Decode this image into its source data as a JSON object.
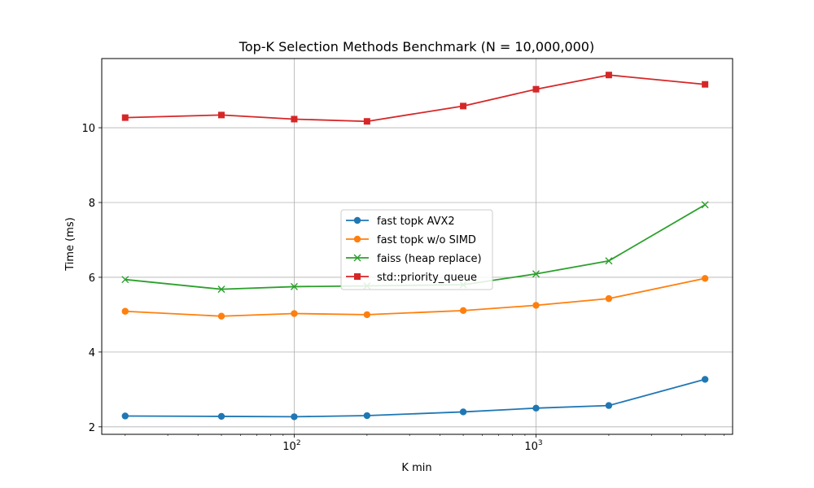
{
  "chart_data": {
    "type": "line",
    "title": "Top-K Selection Methods Benchmark (N = 10,000,000)",
    "xlabel": "K min",
    "ylabel": "Time (ms)",
    "xscale": "log",
    "xlim": [
      16,
      6500
    ],
    "ylim": [
      1.8,
      11.85
    ],
    "grid": true,
    "legend_position": "center",
    "x": [
      20,
      50,
      100,
      200,
      500,
      1000,
      2000,
      5000
    ],
    "x_ticks": [
      {
        "value": 100,
        "base": "10",
        "exp": "2"
      },
      {
        "value": 1000,
        "base": "10",
        "exp": "3"
      }
    ],
    "y_ticks": [
      2,
      4,
      6,
      8,
      10
    ],
    "series": [
      {
        "name": "fast topk AVX2",
        "color": "#1f77b4",
        "marker": "circle",
        "values": [
          2.29,
          2.28,
          2.27,
          2.3,
          2.4,
          2.5,
          2.57,
          3.27
        ]
      },
      {
        "name": "fast topk w/o SIMD",
        "color": "#ff7f0e",
        "marker": "circle",
        "values": [
          5.09,
          4.96,
          5.03,
          5.0,
          5.11,
          5.25,
          5.43,
          5.97
        ]
      },
      {
        "name": "faiss (heap replace)",
        "color": "#2ca02c",
        "marker": "x",
        "values": [
          5.94,
          5.68,
          5.75,
          5.77,
          5.8,
          6.09,
          6.44,
          7.94
        ]
      },
      {
        "name": "std::priority_queue",
        "color": "#d62728",
        "marker": "square",
        "values": [
          10.27,
          10.34,
          10.23,
          10.17,
          10.58,
          11.03,
          11.41,
          11.16
        ]
      }
    ]
  }
}
